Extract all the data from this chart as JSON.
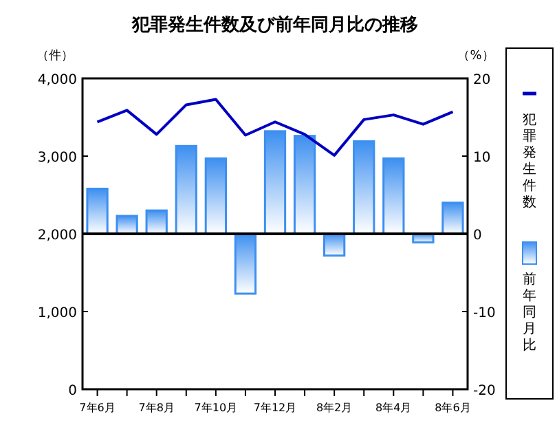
{
  "chart_data": {
    "type": "bar",
    "title": "犯罪発生件数及び前年同月比の推移",
    "ylabel": "（件）",
    "y2label": "（%）",
    "categories": [
      "7年6月",
      null,
      "7年8月",
      null,
      "7年10月",
      null,
      "7年12月",
      null,
      "8年2月",
      null,
      "8年4月",
      null,
      "8年6月"
    ],
    "series": [
      {
        "name": "犯罪発生件数",
        "type": "line",
        "color": "#0000c0",
        "values": [
          3440,
          3590,
          3280,
          3660,
          3730,
          3270,
          3440,
          3280,
          3010,
          3470,
          3530,
          3410,
          3570
        ]
      },
      {
        "name": "前年同月比",
        "axis": "y2",
        "color": "#3d8ff0",
        "values": [
          5.8,
          2.3,
          3.0,
          11.3,
          9.7,
          -7.7,
          13.2,
          12.6,
          -2.8,
          11.9,
          9.7,
          -1.1,
          4.0
        ]
      }
    ],
    "ylim": [
      0,
      4000
    ],
    "yticks": [
      0,
      {
        "value": 1000,
        "label": "1,000"
      },
      {
        "value": 2000,
        "label": "2,000"
      },
      {
        "value": 3000,
        "label": "3,000"
      },
      {
        "value": 4000,
        "label": "4,000"
      }
    ],
    "y2lim": [
      -20,
      20
    ],
    "y2ticks": [
      -20,
      -10,
      0,
      10,
      20
    ],
    "ref_lines": [
      {
        "axis": "y2",
        "value": 0,
        "color": "#000000"
      }
    ],
    "legend": "right",
    "grid": false
  }
}
